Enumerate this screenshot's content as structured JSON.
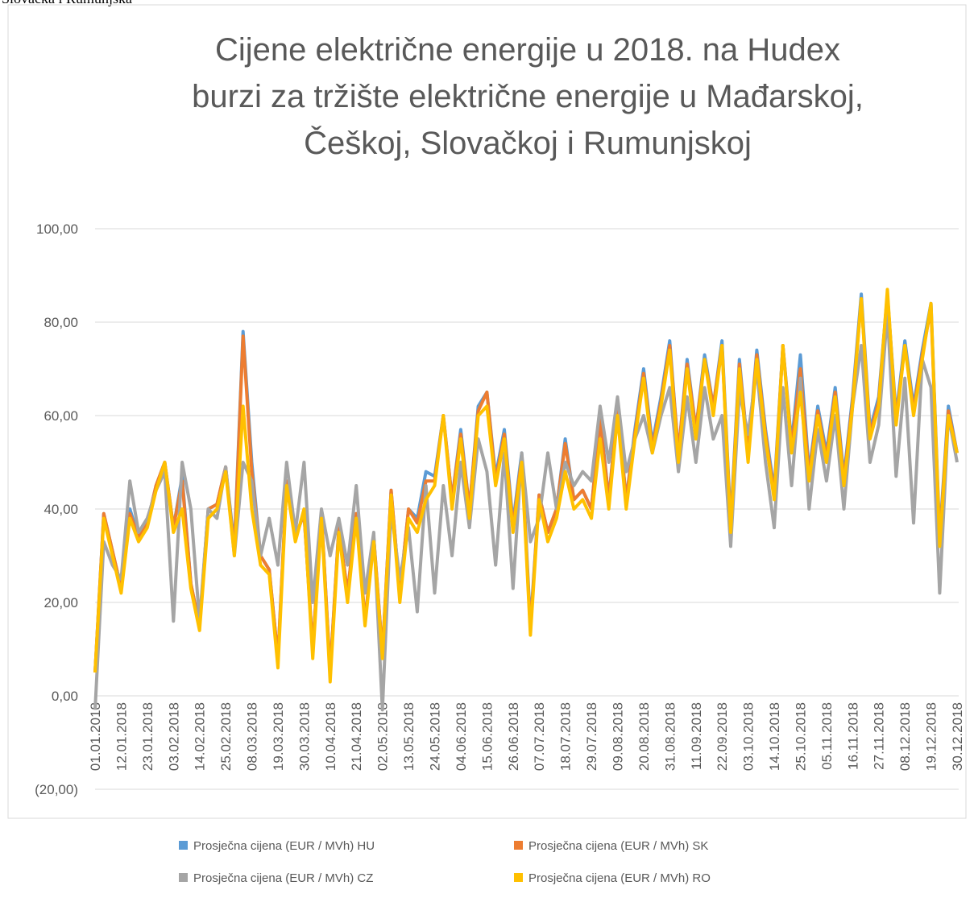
{
  "caption": "Slovačka i Rumunjska",
  "chart_data": {
    "type": "line",
    "title": [
      "Cijene električne energije u 2018. na Hudex",
      "burzi za tržište električne energije u Mađarskoj,",
      "Češkoj, Slovačkoj i Rumunjskoj"
    ],
    "categories": [
      "01.01.2018",
      null,
      null,
      "12.01.2018",
      null,
      null,
      "23.01.2018",
      null,
      null,
      "03.02.2018",
      null,
      null,
      "14.02.2018",
      null,
      null,
      "25.02.2018",
      null,
      null,
      "08.03.2018",
      null,
      null,
      "19.03.2018",
      null,
      null,
      "30.03.2018",
      null,
      null,
      "10.04.2018",
      null,
      null,
      "21.04.2018",
      null,
      null,
      "02.05.2018",
      null,
      null,
      "13.05.2018",
      null,
      null,
      "24.05.2018",
      null,
      null,
      "04.06.2018",
      null,
      null,
      "15.06.2018",
      null,
      null,
      "26.06.2018",
      null,
      null,
      "07.07.2018",
      null,
      null,
      "18.07.2018",
      null,
      null,
      "29.07.2018",
      null,
      null,
      "09.08.2018",
      null,
      null,
      "20.08.2018",
      null,
      null,
      "31.08.2018",
      null,
      null,
      "11.09.2018",
      null,
      null,
      "22.09.2018",
      null,
      null,
      "03.10.2018",
      null,
      null,
      "14.10.2018",
      null,
      null,
      "25.10.2018",
      null,
      null,
      "05.11.2018",
      null,
      null,
      "16.11.2018",
      null,
      null,
      "27.11.2018",
      null,
      null,
      "08.12.2018",
      null,
      null,
      "19.12.2018",
      null,
      null,
      "30.12.2018"
    ],
    "series": [
      {
        "name": "Prosječna cijena (EUR / MVh) HU",
        "color": "#5b9bd5",
        "values": [
          5,
          39,
          31,
          23,
          40,
          34,
          37,
          45,
          50,
          36,
          47,
          24,
          15,
          40,
          41,
          49,
          32,
          78,
          50,
          30,
          27,
          8,
          46,
          34,
          39,
          10,
          39,
          5,
          36,
          22,
          39,
          16,
          34,
          9,
          44,
          22,
          40,
          38,
          48,
          47,
          60,
          42,
          57,
          40,
          62,
          65,
          47,
          57,
          37,
          52,
          15,
          43,
          35,
          40,
          55,
          42,
          44,
          40,
          60,
          42,
          62,
          42,
          57,
          70,
          54,
          64,
          76,
          52,
          72,
          57,
          73,
          62,
          76,
          37,
          72,
          52,
          74,
          57,
          44,
          75,
          54,
          73,
          48,
          62,
          52,
          66,
          47,
          64,
          86,
          57,
          64,
          86,
          60,
          76,
          62,
          74,
          84,
          34,
          62,
          52
        ]
      },
      {
        "name": "Prosječna cijena (EUR / MVh) SK",
        "color": "#ed7d31",
        "values": [
          5,
          39,
          31,
          23,
          39,
          34,
          37,
          45,
          50,
          36,
          46,
          24,
          15,
          40,
          41,
          49,
          31,
          77,
          48,
          30,
          27,
          8,
          46,
          34,
          39,
          10,
          39,
          5,
          36,
          22,
          39,
          16,
          34,
          9,
          44,
          22,
          40,
          37,
          46,
          46,
          60,
          42,
          56,
          40,
          61,
          65,
          46,
          56,
          36,
          51,
          14,
          43,
          35,
          40,
          54,
          42,
          44,
          40,
          59,
          42,
          61,
          42,
          56,
          69,
          53,
          63,
          75,
          52,
          71,
          57,
          72,
          62,
          75,
          36,
          71,
          52,
          73,
          56,
          43,
          75,
          53,
          70,
          47,
          61,
          51,
          65,
          46,
          63,
          85,
          56,
          63,
          86,
          59,
          75,
          61,
          73,
          83,
          33,
          61,
          52
        ]
      },
      {
        "name": "Prosječna cijena (EUR / MVh) CZ",
        "color": "#a5a5a5",
        "values": [
          -3,
          33,
          28,
          25,
          46,
          35,
          38,
          44,
          48,
          16,
          50,
          40,
          16,
          40,
          38,
          49,
          30,
          50,
          46,
          30,
          38,
          28,
          50,
          35,
          50,
          20,
          40,
          30,
          38,
          28,
          45,
          22,
          35,
          -3,
          40,
          25,
          36,
          18,
          45,
          22,
          45,
          30,
          50,
          36,
          55,
          48,
          28,
          52,
          23,
          52,
          33,
          38,
          52,
          40,
          50,
          45,
          48,
          46,
          62,
          50,
          64,
          48,
          55,
          60,
          52,
          60,
          66,
          48,
          64,
          50,
          66,
          55,
          60,
          32,
          65,
          56,
          70,
          50,
          36,
          66,
          45,
          68,
          40,
          57,
          46,
          60,
          40,
          62,
          75,
          50,
          58,
          82,
          47,
          68,
          37,
          72,
          66,
          22,
          60,
          50
        ]
      },
      {
        "name": "Prosječna cijena (EUR / MVh) RO",
        "color": "#ffc000",
        "values": [
          5,
          38,
          30,
          22,
          38,
          33,
          36,
          44,
          50,
          35,
          40,
          23,
          14,
          38,
          40,
          48,
          30,
          62,
          40,
          28,
          26,
          6,
          45,
          33,
          40,
          8,
          38,
          3,
          35,
          20,
          38,
          15,
          33,
          8,
          43,
          20,
          38,
          35,
          42,
          45,
          60,
          40,
          55,
          38,
          60,
          62,
          45,
          55,
          35,
          50,
          13,
          42,
          33,
          38,
          48,
          40,
          42,
          38,
          55,
          40,
          60,
          40,
          55,
          68,
          52,
          62,
          74,
          50,
          70,
          55,
          72,
          60,
          75,
          35,
          70,
          50,
          72,
          55,
          42,
          75,
          52,
          65,
          46,
          60,
          50,
          64,
          45,
          62,
          85,
          55,
          62,
          87,
          58,
          75,
          60,
          72,
          84,
          32,
          60,
          52
        ]
      }
    ],
    "ylim": [
      -20,
      100
    ],
    "yticks": [
      {
        "value": -20,
        "label": "(20,00)"
      },
      {
        "value": 0,
        "label": "0,00"
      },
      {
        "value": 20,
        "label": "20,00"
      },
      {
        "value": 40,
        "label": "40,00"
      },
      {
        "value": 60,
        "label": "60,00"
      },
      {
        "value": 80,
        "label": "80,00"
      },
      {
        "value": 100,
        "label": "100,00"
      }
    ],
    "grid": true,
    "legend": "bottom"
  }
}
